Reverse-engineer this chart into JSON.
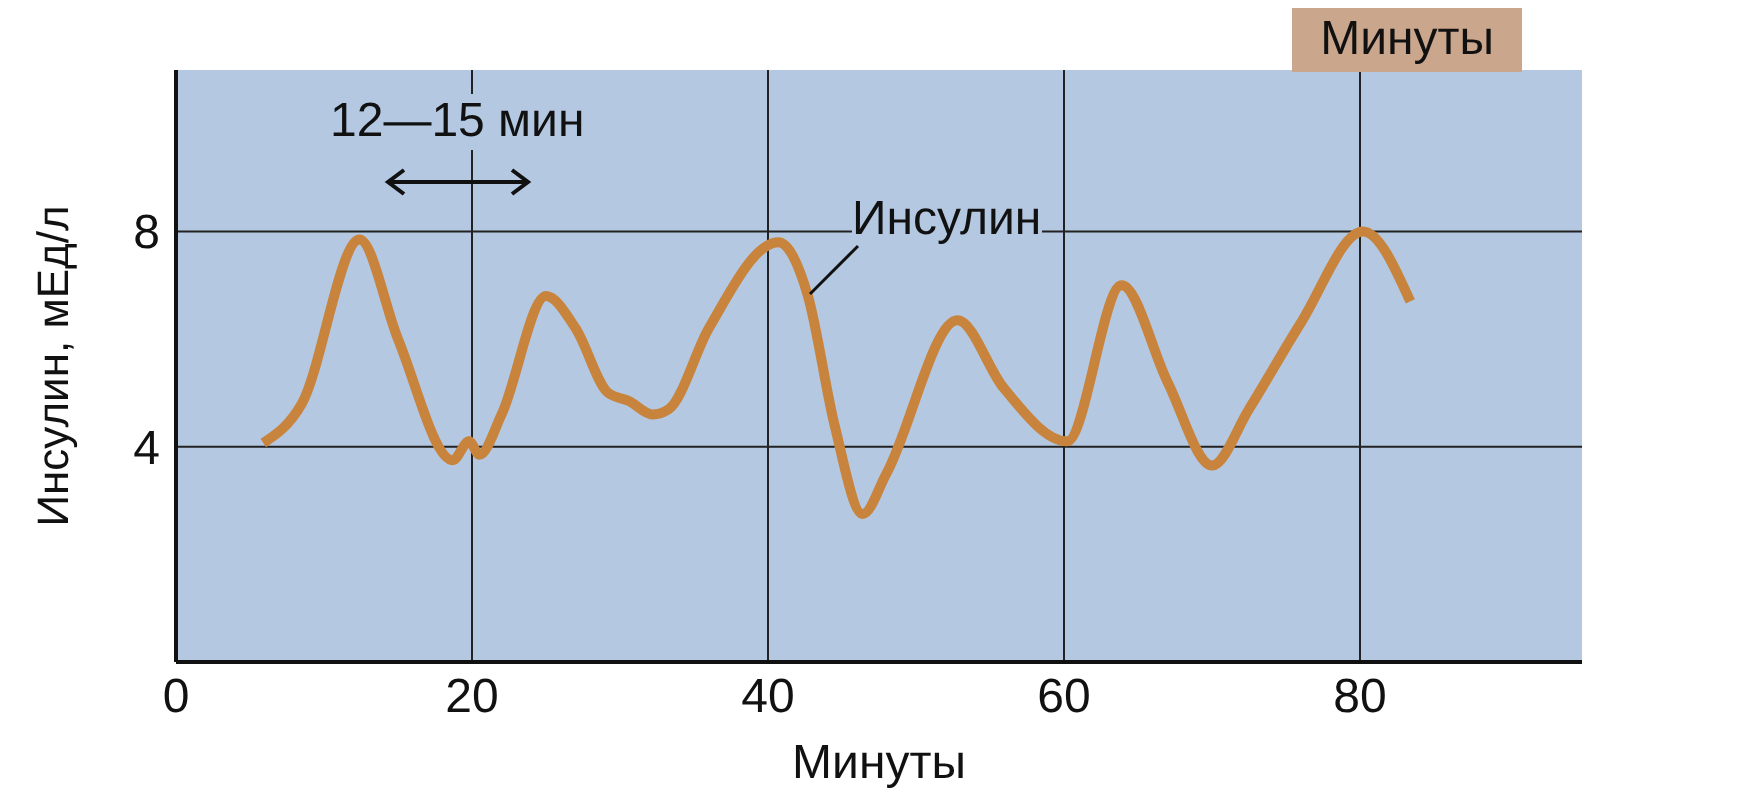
{
  "chart_data": {
    "type": "line",
    "xlabel": "Минуты",
    "ylabel": "Инсулин, мЕд/л",
    "xlim": [
      0,
      95
    ],
    "ylim": [
      0,
      11
    ],
    "xticks": [
      0,
      20,
      40,
      60,
      80
    ],
    "yticks": [
      4,
      8
    ],
    "grid": true,
    "marker": "none",
    "annotations": [
      "12—15 мин",
      "Минуты"
    ],
    "series": [
      {
        "name": "Инсулин",
        "color": "#c8843c",
        "x": [
          5.9,
          8.5,
          12.4,
          15,
          18.7,
          19.8,
          20.5,
          22,
          25,
          27,
          29.2,
          30.6,
          32.2,
          33.3,
          36,
          40.7,
          42.7,
          44.5,
          46.4,
          48,
          52.8,
          55.9,
          60.2,
          63.9,
          67,
          70,
          72.5,
          76,
          80.2,
          83.4
        ],
        "values": [
          4.07,
          4.8,
          7.85,
          6,
          3.75,
          4.1,
          3.85,
          4.6,
          6.8,
          6.2,
          5.0,
          4.85,
          4.6,
          4.7,
          6.2,
          7.8,
          6.8,
          4.4,
          2.75,
          3.5,
          6.35,
          5.1,
          4.1,
          7.0,
          5.2,
          3.65,
          4.7,
          6.3,
          8.0,
          6.7
        ]
      }
    ]
  }
}
